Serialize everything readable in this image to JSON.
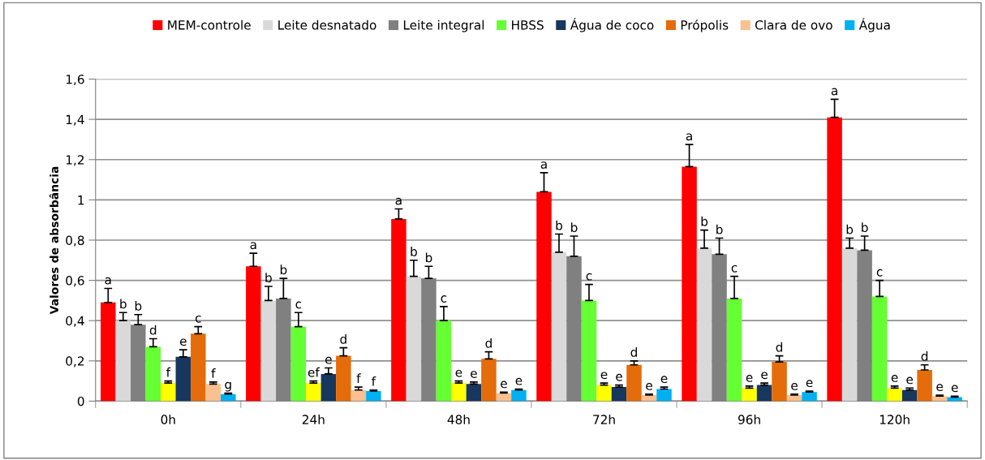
{
  "chart_data": {
    "type": "bar",
    "ylabel": "Valores de absorbância",
    "categories": [
      "0h",
      "24h",
      "48h",
      "72h",
      "96h",
      "120h"
    ],
    "ylim": [
      0,
      1.6
    ],
    "yticks": [
      {
        "value": 0,
        "label": "0"
      },
      {
        "value": 0.2,
        "label": "0,2"
      },
      {
        "value": 0.4,
        "label": "0,4"
      },
      {
        "value": 0.6,
        "label": "0,6"
      },
      {
        "value": 0.8,
        "label": "0,8"
      },
      {
        "value": 1,
        "label": "1"
      },
      {
        "value": 1.2,
        "label": "1,2"
      },
      {
        "value": 1.4,
        "label": "1,4"
      },
      {
        "value": 1.6,
        "label": "1,6"
      }
    ],
    "grid": "y",
    "legend": "top",
    "series": [
      {
        "name": "MEM-controle",
        "color": "#ff0000",
        "values": [
          0.49,
          0.67,
          0.905,
          1.04,
          1.165,
          1.41
        ],
        "errors": [
          [
            0.49,
            0.56
          ],
          [
            0.67,
            0.735
          ],
          [
            0.905,
            0.955
          ],
          [
            1.04,
            1.135
          ],
          [
            1.165,
            1.275
          ],
          [
            1.41,
            1.5
          ]
        ],
        "value_labels": [
          "a",
          "a",
          "a",
          "a",
          "a",
          "a"
        ]
      },
      {
        "name": "Leite desnatado",
        "color": "#d9d9d9",
        "values": [
          0.4,
          0.5,
          0.62,
          0.74,
          0.76,
          0.76
        ],
        "errors": [
          [
            0.4,
            0.44
          ],
          [
            0.5,
            0.57
          ],
          [
            0.62,
            0.7
          ],
          [
            0.74,
            0.83
          ],
          [
            0.76,
            0.85
          ],
          [
            0.76,
            0.81
          ]
        ],
        "value_labels": [
          "b",
          "b",
          "b",
          "b",
          "b",
          "b"
        ]
      },
      {
        "name": "Leite integral",
        "color": "#808080",
        "values": [
          0.38,
          0.51,
          0.61,
          0.72,
          0.73,
          0.75
        ],
        "errors": [
          [
            0.38,
            0.43
          ],
          [
            0.51,
            0.61
          ],
          [
            0.61,
            0.67
          ],
          [
            0.72,
            0.82
          ],
          [
            0.73,
            0.81
          ],
          [
            0.75,
            0.82
          ]
        ],
        "value_labels": [
          "b",
          "b",
          "b",
          "b",
          "b",
          "b"
        ]
      },
      {
        "name": "HBSS",
        "color": "#66ff33",
        "values": [
          0.27,
          0.37,
          0.4,
          0.5,
          0.51,
          0.52
        ],
        "errors": [
          [
            0.27,
            0.31
          ],
          [
            0.37,
            0.44
          ],
          [
            0.4,
            0.47
          ],
          [
            0.5,
            0.58
          ],
          [
            0.51,
            0.62
          ],
          [
            0.52,
            0.6
          ]
        ],
        "value_labels": [
          "d",
          "c",
          "c",
          "c",
          "c",
          "c"
        ]
      },
      {
        "color": "#ffff00",
        "values": [
          0.09,
          0.09,
          0.09,
          0.08,
          0.065,
          0.065
        ],
        "errors": [
          [
            0.09,
            0.1
          ],
          [
            0.09,
            0.1
          ],
          [
            0.09,
            0.1
          ],
          [
            0.08,
            0.09
          ],
          [
            0.065,
            0.075
          ],
          [
            0.065,
            0.075
          ]
        ],
        "value_labels": [
          "f",
          "ef",
          "e",
          "e",
          "e",
          "e"
        ]
      },
      {
        "name": "Água de coco",
        "color": "#17375e",
        "values": [
          0.22,
          0.135,
          0.085,
          0.07,
          0.08,
          0.055
        ],
        "errors": [
          [
            0.22,
            0.255
          ],
          [
            0.135,
            0.165
          ],
          [
            0.085,
            0.095
          ],
          [
            0.07,
            0.08
          ],
          [
            0.08,
            0.09
          ],
          [
            0.055,
            0.065
          ]
        ],
        "value_labels": [
          "e",
          "e",
          "e",
          "e",
          "e",
          "e"
        ]
      },
      {
        "name": "Própolis",
        "color": "#e46c0a",
        "values": [
          0.335,
          0.225,
          0.21,
          0.18,
          0.195,
          0.155
        ],
        "errors": [
          [
            0.335,
            0.37
          ],
          [
            0.225,
            0.265
          ],
          [
            0.21,
            0.245
          ],
          [
            0.18,
            0.2
          ],
          [
            0.195,
            0.225
          ],
          [
            0.155,
            0.18
          ]
        ],
        "value_labels": [
          "c",
          "d",
          "d",
          "d",
          "d",
          "d"
        ]
      },
      {
        "name": "Clara de ovo",
        "color": "#fac090",
        "values": [
          0.085,
          0.055,
          0.04,
          0.03,
          0.03,
          0.025
        ],
        "errors": [
          [
            0.085,
            0.095
          ],
          [
            0.055,
            0.07
          ],
          [
            0.04,
            0.045
          ],
          [
            0.03,
            0.035
          ],
          [
            0.03,
            0.035
          ],
          [
            0.025,
            0.03
          ]
        ],
        "value_labels": [
          "f",
          "f",
          "e",
          "e",
          "e",
          "e"
        ]
      },
      {
        "name": "Água",
        "color": "#00b0f0",
        "values": [
          0.035,
          0.05,
          0.055,
          0.06,
          0.045,
          0.02
        ],
        "errors": [
          [
            0.035,
            0.04
          ],
          [
            0.05,
            0.055
          ],
          [
            0.055,
            0.06
          ],
          [
            0.06,
            0.07
          ],
          [
            0.045,
            0.05
          ],
          [
            0.02,
            0.025
          ]
        ],
        "value_labels": [
          "g",
          "f",
          "e",
          "e",
          "e",
          "e"
        ]
      }
    ]
  }
}
